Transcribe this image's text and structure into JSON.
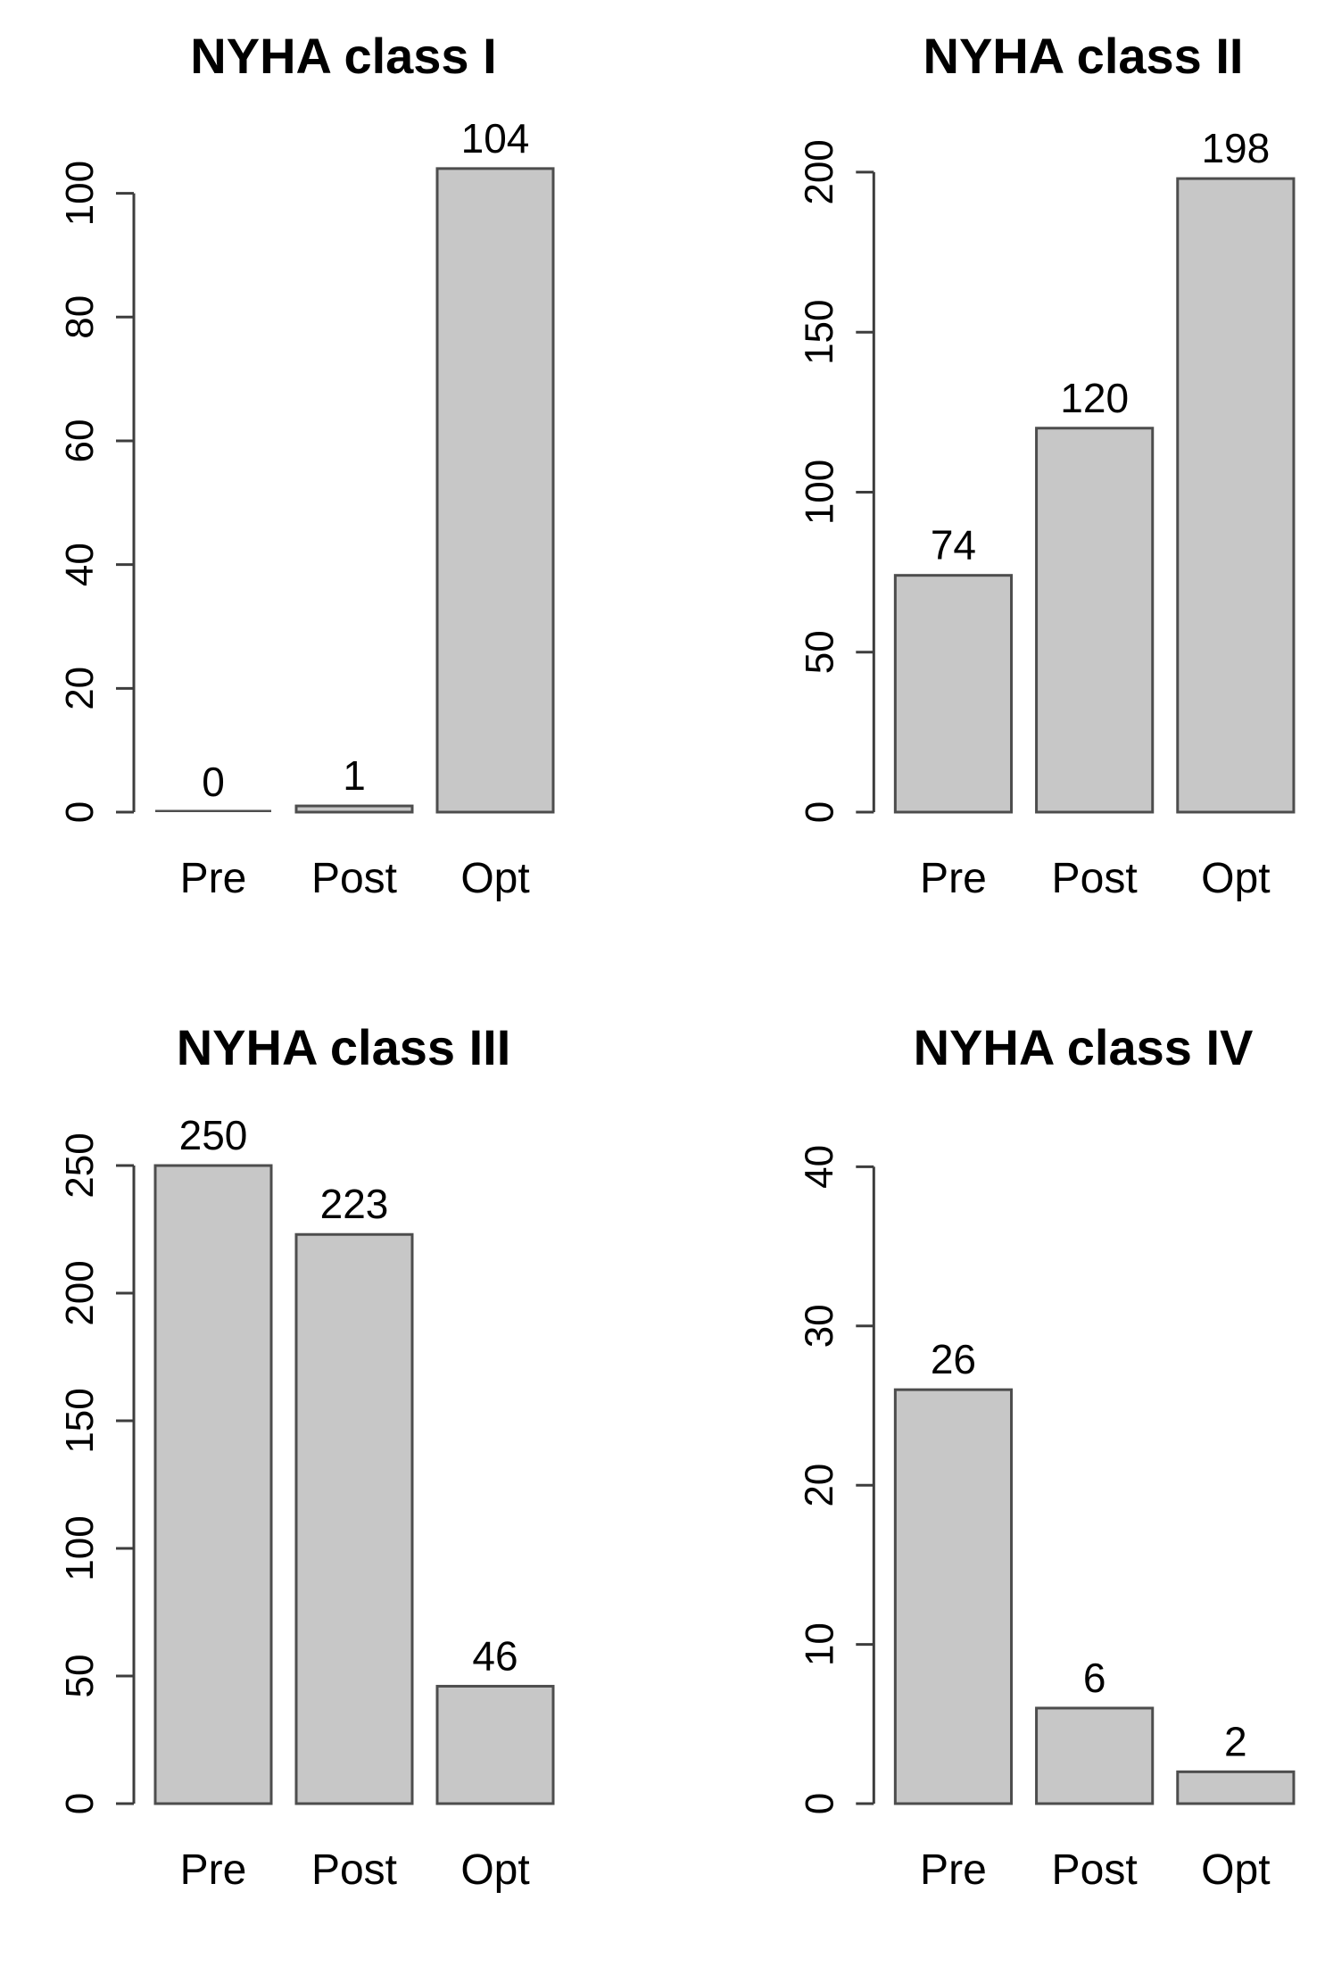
{
  "style": {
    "bar_fill": "#c7c7c7",
    "bar_border": "#4d4d4d",
    "axis_color": "#3d3d3d",
    "text_color": "#000000"
  },
  "chart_data": [
    {
      "type": "bar",
      "title": "NYHA class I",
      "categories": [
        "Pre",
        "Post",
        "Opt"
      ],
      "values": [
        0,
        1,
        104
      ],
      "bar_labels": [
        "0",
        "1",
        "104"
      ],
      "xlabel": "",
      "ylabel": "",
      "yticks": [
        0,
        20,
        40,
        60,
        80,
        100
      ],
      "ylim": [
        0,
        106
      ],
      "grid": false,
      "legend": false
    },
    {
      "type": "bar",
      "title": "NYHA class II",
      "categories": [
        "Pre",
        "Post",
        "Opt"
      ],
      "values": [
        74,
        120,
        198
      ],
      "bar_labels": [
        "74",
        "120",
        "198"
      ],
      "xlabel": "",
      "ylabel": "",
      "yticks": [
        0,
        50,
        100,
        150,
        200
      ],
      "ylim": [
        0,
        205
      ],
      "grid": false,
      "legend": false
    },
    {
      "type": "bar",
      "title": "NYHA class III",
      "categories": [
        "Pre",
        "Post",
        "Opt"
      ],
      "values": [
        250,
        223,
        46
      ],
      "bar_labels": [
        "250",
        "223",
        "46"
      ],
      "xlabel": "",
      "ylabel": "",
      "yticks": [
        0,
        50,
        100,
        150,
        200,
        250
      ],
      "ylim": [
        0,
        257
      ],
      "grid": false,
      "legend": false
    },
    {
      "type": "bar",
      "title": "NYHA class IV",
      "categories": [
        "Pre",
        "Post",
        "Opt"
      ],
      "values": [
        26,
        6,
        2
      ],
      "bar_labels": [
        "26",
        "6",
        "2"
      ],
      "xlabel": "",
      "ylabel": "",
      "yticks": [
        0,
        10,
        20,
        30,
        40
      ],
      "ylim": [
        0,
        41.2
      ],
      "grid": false,
      "legend": false
    }
  ]
}
